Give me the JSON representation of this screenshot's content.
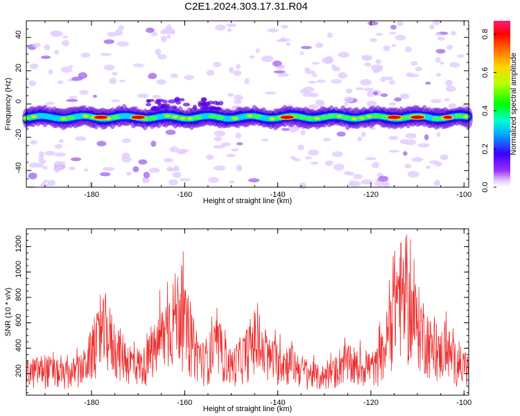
{
  "title": "C2E1.2024.303.17.31.R04",
  "chart_data": [
    {
      "type": "heatmap",
      "xlabel": "Height of straight line (km)",
      "ylabel": "Frequency (Hz)",
      "xlim": [
        -194,
        -99
      ],
      "ylim": [
        -50,
        50
      ],
      "x_ticks": [
        -180,
        -160,
        -140,
        -120,
        -100
      ],
      "y_ticks": [
        -40,
        -20,
        0,
        20,
        40
      ],
      "colorbar": {
        "label": "Normalized spectral amplitude",
        "range": [
          0,
          0.87
        ],
        "ticks": [
          0.0,
          0.2,
          0.4,
          0.6,
          0.8
        ]
      },
      "ridge": {
        "center_frequency_hz": -8,
        "peak_amplitude_segments_km": [
          [
            -179,
            -177
          ],
          [
            -171,
            -169
          ],
          [
            -139,
            -137
          ],
          [
            -116,
            -114
          ],
          [
            -111,
            -109
          ],
          [
            -104,
            -103
          ]
        ]
      },
      "grid": false
    },
    {
      "type": "line",
      "xlabel": "Height of straight line (km)",
      "ylabel": "SNR (10 * v/v)",
      "xlim": [
        -194,
        -99
      ],
      "ylim": [
        30,
        1340
      ],
      "x_ticks": [
        -180,
        -160,
        -140,
        -120,
        -100
      ],
      "y_ticks": [
        200,
        400,
        600,
        800,
        1000,
        1200
      ],
      "color": "#ee2b2b",
      "envelope_x": [
        -194,
        -190,
        -186,
        -182,
        -179,
        -177,
        -175,
        -172,
        -169,
        -166,
        -163,
        -161,
        -159,
        -156,
        -153,
        -150,
        -147,
        -145,
        -143,
        -140,
        -137,
        -134,
        -131,
        -128,
        -126,
        -123,
        -121,
        -119,
        -117,
        -115,
        -114,
        -112,
        -110,
        -108,
        -106,
        -104,
        -102,
        -99
      ],
      "envelope_y": [
        260,
        300,
        240,
        300,
        550,
        700,
        520,
        380,
        330,
        520,
        780,
        900,
        600,
        380,
        520,
        330,
        450,
        600,
        420,
        380,
        360,
        270,
        220,
        260,
        380,
        300,
        330,
        320,
        500,
        970,
        1100,
        900,
        760,
        620,
        400,
        520,
        380,
        300
      ],
      "grid": false
    }
  ]
}
